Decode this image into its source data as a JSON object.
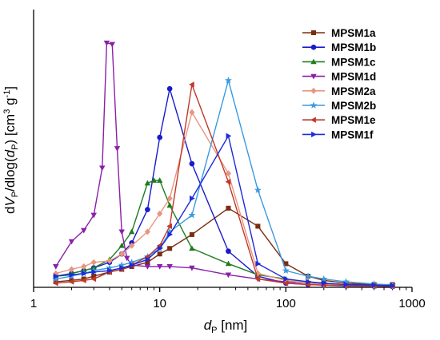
{
  "chart_data": {
    "type": "line",
    "xscale": "log",
    "xlim": [
      1,
      1000
    ],
    "ylim": [
      0,
      1
    ],
    "xticks": [
      "1",
      "10",
      "100",
      "1000"
    ],
    "yticks_shown": false,
    "legend_position": "top-right",
    "grid": false,
    "series": [
      {
        "name": "MPSM1a",
        "color": "#7b2d12",
        "marker": "square",
        "x": [
          1.5,
          2,
          2.5,
          3,
          4,
          5,
          6,
          8,
          10,
          12,
          18,
          35,
          60,
          100,
          150,
          200,
          300,
          500,
          700
        ],
        "y": [
          0.02,
          0.025,
          0.03,
          0.04,
          0.055,
          0.065,
          0.075,
          0.09,
          0.12,
          0.14,
          0.19,
          0.285,
          0.22,
          0.085,
          0.04,
          0.025,
          0.015,
          0.01,
          0.01
        ]
      },
      {
        "name": "MPSM1b",
        "color": "#1a1acc",
        "marker": "circle",
        "x": [
          1.5,
          2,
          2.5,
          3,
          4,
          5,
          6,
          8,
          10,
          12,
          18,
          35,
          60,
          100,
          150,
          200,
          300,
          500,
          700
        ],
        "y": [
          0.04,
          0.05,
          0.06,
          0.07,
          0.09,
          0.12,
          0.16,
          0.28,
          0.54,
          0.715,
          0.445,
          0.13,
          0.04,
          0.015,
          0.01,
          0.008,
          0.005,
          0.004,
          0.003
        ]
      },
      {
        "name": "MPSM1c",
        "color": "#1e7d1e",
        "marker": "triangle-up",
        "x": [
          1.5,
          2,
          2.5,
          3,
          4,
          5,
          6,
          8,
          9,
          10,
          12,
          18,
          35,
          60,
          100,
          150,
          200,
          300,
          500,
          700
        ],
        "y": [
          0.04,
          0.05,
          0.06,
          0.07,
          0.1,
          0.15,
          0.2,
          0.375,
          0.385,
          0.385,
          0.295,
          0.14,
          0.085,
          0.045,
          0.03,
          0.02,
          0.015,
          0.01,
          0.008,
          0.006
        ]
      },
      {
        "name": "MPSM1d",
        "color": "#8a1fa8",
        "marker": "triangle-down",
        "x": [
          1.5,
          2,
          2.5,
          3,
          3.5,
          3.8,
          4.2,
          4.6,
          5,
          5.5,
          6,
          8,
          10,
          12,
          18,
          35,
          60,
          100,
          150,
          200,
          300,
          500,
          700
        ],
        "y": [
          0.075,
          0.165,
          0.205,
          0.26,
          0.43,
          0.88,
          0.875,
          0.5,
          0.2,
          0.105,
          0.08,
          0.075,
          0.075,
          0.075,
          0.07,
          0.045,
          0.03,
          0.02,
          0.015,
          0.012,
          0.01,
          0.008,
          0.006
        ]
      },
      {
        "name": "MPSM2a",
        "color": "#e8967e",
        "marker": "diamond",
        "x": [
          1.5,
          2,
          2.5,
          3,
          4,
          5,
          6,
          8,
          10,
          12,
          18,
          35,
          60,
          100,
          150,
          200,
          300,
          500,
          700
        ],
        "y": [
          0.05,
          0.065,
          0.075,
          0.09,
          0.095,
          0.12,
          0.15,
          0.2,
          0.265,
          0.32,
          0.63,
          0.41,
          0.05,
          0.025,
          0.015,
          0.01,
          0.008,
          0.006,
          0.005
        ]
      },
      {
        "name": "MPSM2b",
        "color": "#3b9ae0",
        "marker": "star",
        "x": [
          1.5,
          2,
          2.5,
          3,
          4,
          5,
          6,
          8,
          10,
          12,
          18,
          35,
          60,
          100,
          150,
          200,
          300,
          500,
          700
        ],
        "y": [
          0.03,
          0.04,
          0.05,
          0.06,
          0.07,
          0.08,
          0.09,
          0.11,
          0.14,
          0.2,
          0.26,
          0.745,
          0.35,
          0.06,
          0.04,
          0.03,
          0.02,
          0.012,
          0.008
        ]
      },
      {
        "name": "MPSM1e",
        "color": "#c0392b",
        "marker": "triangle-left",
        "x": [
          1.5,
          2,
          2.5,
          3,
          4,
          5,
          6,
          8,
          10,
          12,
          18,
          35,
          60,
          100,
          150,
          200,
          300,
          500,
          700
        ],
        "y": [
          0.015,
          0.02,
          0.025,
          0.03,
          0.055,
          0.065,
          0.08,
          0.11,
          0.15,
          0.22,
          0.73,
          0.38,
          0.03,
          0.015,
          0.01,
          0.008,
          0.006,
          0.005,
          0.004
        ]
      },
      {
        "name": "MPSM1f",
        "color": "#1d2bd9",
        "marker": "triangle-right",
        "x": [
          1.5,
          2,
          2.5,
          3,
          4,
          5,
          6,
          8,
          10,
          12,
          18,
          35,
          60,
          100,
          150,
          200,
          300,
          500,
          700
        ],
        "y": [
          0.04,
          0.045,
          0.05,
          0.055,
          0.06,
          0.07,
          0.08,
          0.1,
          0.14,
          0.19,
          0.32,
          0.545,
          0.085,
          0.03,
          0.02,
          0.015,
          0.01,
          0.008,
          0.006
        ]
      }
    ]
  }
}
